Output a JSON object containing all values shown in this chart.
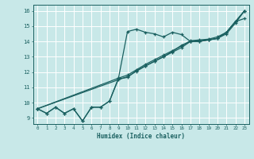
{
  "xlabel": "Humidex (Indice chaleur)",
  "background_color": "#c8e8e8",
  "grid_color": "#ffffff",
  "line_color": "#1a6060",
  "xlim": [
    -0.5,
    23.5
  ],
  "ylim": [
    8.6,
    16.4
  ],
  "xticks": [
    0,
    1,
    2,
    3,
    4,
    5,
    6,
    7,
    8,
    9,
    10,
    11,
    12,
    13,
    14,
    15,
    16,
    17,
    18,
    19,
    20,
    21,
    22,
    23
  ],
  "yticks": [
    9,
    10,
    11,
    12,
    13,
    14,
    15,
    16
  ],
  "curve1_x": [
    0,
    1,
    2,
    3,
    4,
    5,
    6,
    7,
    8,
    9,
    10,
    11,
    12,
    13,
    14,
    15,
    16,
    17,
    18,
    19,
    20,
    21,
    22,
    23
  ],
  "curve1_y": [
    9.6,
    9.3,
    9.7,
    9.3,
    9.6,
    8.8,
    9.7,
    9.7,
    10.1,
    11.6,
    14.65,
    14.8,
    14.6,
    14.5,
    14.3,
    14.6,
    14.45,
    14.0,
    14.0,
    14.1,
    14.2,
    14.6,
    15.3,
    15.5
  ],
  "curve2_x": [
    0,
    1,
    2,
    3,
    4,
    5,
    6,
    7,
    8,
    9,
    10,
    11,
    12,
    13,
    14,
    15,
    16,
    17,
    18,
    19,
    20,
    21,
    22,
    23
  ],
  "curve2_y": [
    9.6,
    9.3,
    9.7,
    9.3,
    9.6,
    8.8,
    9.7,
    9.7,
    10.1,
    11.55,
    11.65,
    12.1,
    12.4,
    12.7,
    13.0,
    13.35,
    13.75,
    14.0,
    14.05,
    14.1,
    14.2,
    14.6,
    15.3,
    16.0
  ],
  "curve3_x": [
    0,
    9,
    10,
    11,
    12,
    13,
    14,
    15,
    16,
    17,
    18,
    19,
    20,
    21,
    22,
    23
  ],
  "curve3_y": [
    9.6,
    11.5,
    11.7,
    12.05,
    12.4,
    12.7,
    13.0,
    13.3,
    13.6,
    14.0,
    14.0,
    14.1,
    14.2,
    14.5,
    15.2,
    16.0
  ],
  "curve4_x": [
    0,
    9,
    10,
    11,
    12,
    13,
    14,
    15,
    16,
    17,
    18,
    19,
    20,
    21,
    22,
    23
  ],
  "curve4_y": [
    9.6,
    11.6,
    11.8,
    12.15,
    12.5,
    12.8,
    13.1,
    13.4,
    13.7,
    14.05,
    14.1,
    14.15,
    14.3,
    14.6,
    15.3,
    16.0
  ]
}
